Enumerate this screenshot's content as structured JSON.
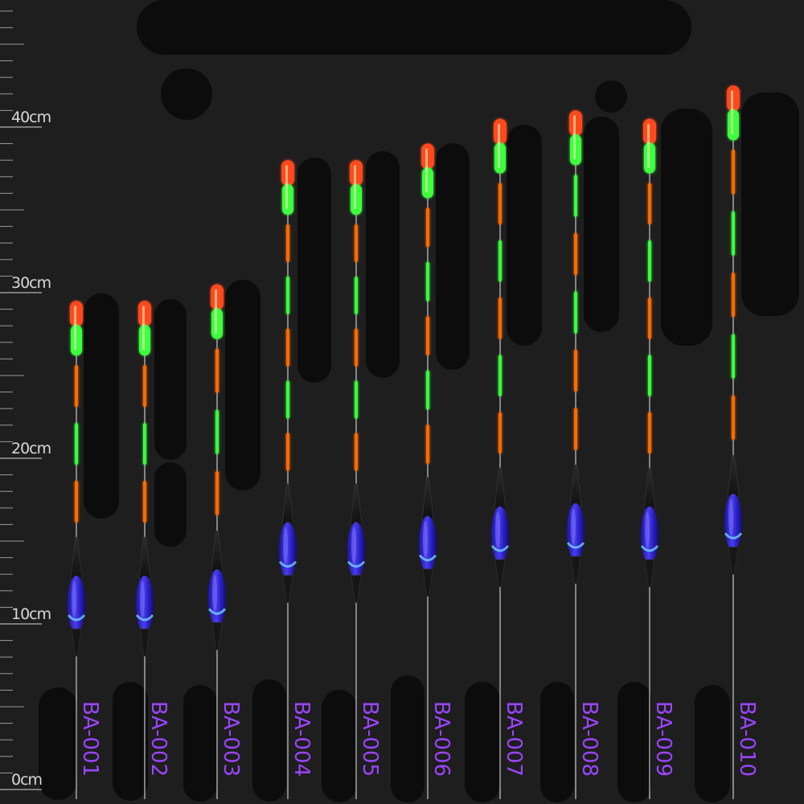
{
  "ruler": {
    "labels": [
      {
        "text": "40cm",
        "cm": 40
      },
      {
        "text": "30cm",
        "cm": 30
      },
      {
        "text": "20cm",
        "cm": 20
      },
      {
        "text": "10cm",
        "cm": 10
      },
      {
        "text": "0cm",
        "cm": 0
      }
    ]
  },
  "floats": [
    {
      "model": "BA-001",
      "length_cm": 29.5,
      "color_order": [
        "#ff6a00",
        "#39ff3c",
        "#ff6a00"
      ]
    },
    {
      "model": "BA-002",
      "length_cm": 29.5,
      "color_order": [
        "#ff6a00",
        "#39ff3c",
        "#ff6a00"
      ]
    },
    {
      "model": "BA-003",
      "length_cm": 30.5,
      "color_order": [
        "#ff6a00",
        "#39ff3c",
        "#ff6a00"
      ]
    },
    {
      "model": "BA-004",
      "length_cm": 38.0,
      "color_order": [
        "#ff6a00",
        "#39ff3c",
        "#ff6a00",
        "#39ff3c",
        "#ff6a00"
      ]
    },
    {
      "model": "BA-005",
      "length_cm": 38.0,
      "color_order": [
        "#ff6a00",
        "#39ff3c",
        "#ff6a00",
        "#39ff3c",
        "#ff6a00"
      ]
    },
    {
      "model": "BA-006",
      "length_cm": 39.0,
      "color_order": [
        "#ff6a00",
        "#39ff3c",
        "#ff6a00",
        "#39ff3c",
        "#ff6a00"
      ]
    },
    {
      "model": "BA-007",
      "length_cm": 40.5,
      "color_order": [
        "#ff6a00",
        "#39ff3c",
        "#ff6a00",
        "#39ff3c",
        "#ff6a00"
      ]
    },
    {
      "model": "BA-008",
      "length_cm": 41.0,
      "color_order": [
        "#39ff3c",
        "#ff6a00",
        "#39ff3c",
        "#ff6a00",
        "#ff6a00"
      ]
    },
    {
      "model": "BA-009",
      "length_cm": 40.5,
      "color_order": [
        "#ff6a00",
        "#39ff3c",
        "#ff6a00",
        "#39ff3c",
        "#ff6a00"
      ]
    },
    {
      "model": "BA-010",
      "length_cm": 42.5,
      "color_order": [
        "#ff6a00",
        "#39ff3c",
        "#ff6a00",
        "#39ff3c",
        "#ff6a00"
      ]
    }
  ],
  "colors": {
    "background": "#1e1e1e",
    "label": "#9a45ff",
    "tip_red": "#ff4a1a",
    "tip_green": "#3dff3d",
    "body_blue": "#3a2fd6"
  }
}
